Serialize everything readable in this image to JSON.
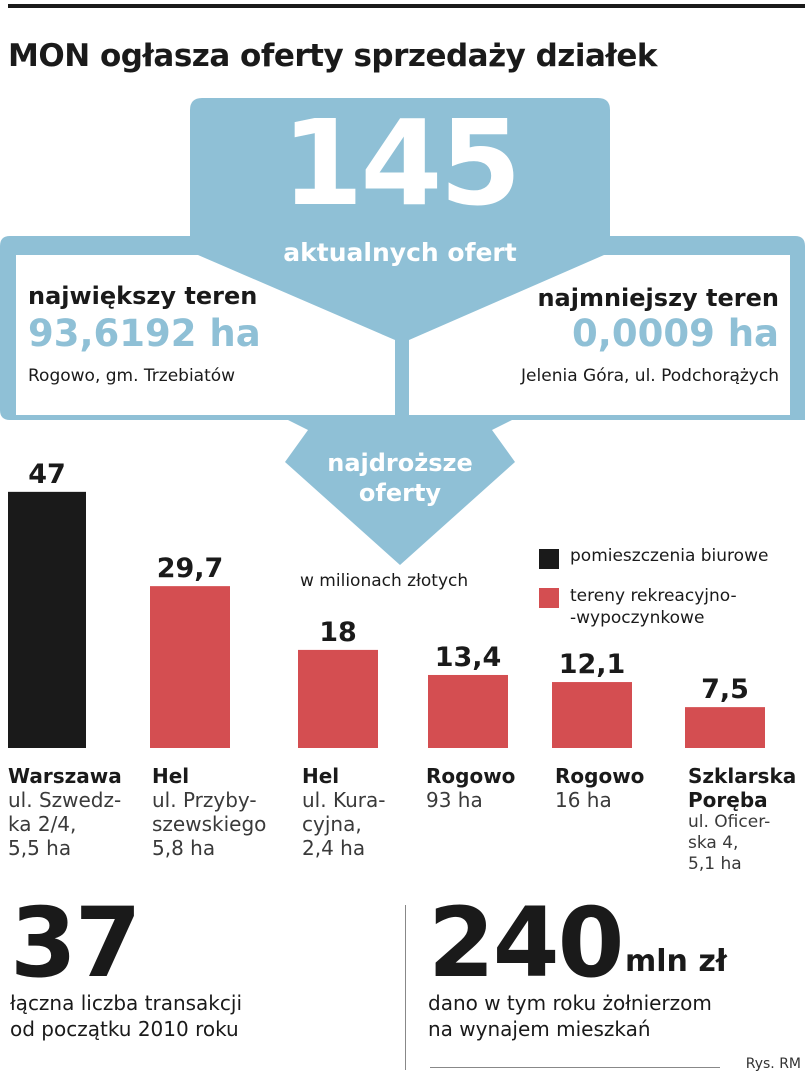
{
  "title": "MON ogłasza oferty sprzedaży działek",
  "offers": {
    "number": "145",
    "caption": "aktualnych ofert"
  },
  "largest": {
    "heading": "największy teren",
    "value": "93,6192 ha",
    "place": "Rogowo,  gm. Trzebiatów"
  },
  "smallest": {
    "heading": "najmniejszy teren",
    "value": "0,0009 ha",
    "place": "Jelenia Góra, ul. Podchorążych"
  },
  "expensive_label": [
    "najdroższe",
    "oferty"
  ],
  "colors": {
    "panel": "#8fc0d6",
    "office": "#1a1a1a",
    "recreation": "#d44e51"
  },
  "chart_data": {
    "type": "bar",
    "units_label": "w milionach złotych",
    "legend": [
      {
        "label": "pomieszczenia biurowe",
        "color": "#1a1a1a"
      },
      {
        "label": "tereny rekreacyjno- -wypoczynkowe",
        "label_lines": [
          "tereny rekreacyjno-",
          "-wypoczynkowe"
        ],
        "color": "#d44e51"
      }
    ],
    "bars": [
      {
        "value": 47,
        "value_label": "47",
        "name": "Warszawa",
        "desc": [
          "ul. Szwedz-",
          "ka 2/4,",
          "5,5 ha"
        ],
        "category": "pomieszczenia biurowe",
        "color": "#1a1a1a"
      },
      {
        "value": 29.7,
        "value_label": "29,7",
        "name": "Hel",
        "desc": [
          "ul. Przyby-",
          "szewskiego",
          "5,8 ha"
        ],
        "category": "tereny rekreacyjno-wypoczynkowe",
        "color": "#d44e51"
      },
      {
        "value": 18,
        "value_label": "18",
        "name": "Hel",
        "desc": [
          "ul. Kura-",
          "cyjna,",
          "2,4 ha"
        ],
        "category": "tereny rekreacyjno-wypoczynkowe",
        "color": "#d44e51"
      },
      {
        "value": 13.4,
        "value_label": "13,4",
        "name": "Rogowo",
        "desc": [
          "93 ha"
        ],
        "category": "tereny rekreacyjno-wypoczynkowe",
        "color": "#d44e51"
      },
      {
        "value": 12.1,
        "value_label": "12,1",
        "name": "Rogowo",
        "desc": [
          "16 ha"
        ],
        "category": "tereny rekreacyjno-wypoczynkowe",
        "color": "#d44e51"
      },
      {
        "value": 7.5,
        "value_label": "7,5",
        "name": "Szklarska Poręba",
        "desc": [
          "ul. Oficer-",
          "ska 4,",
          "5,1 ha"
        ],
        "category": "tereny rekreacyjno-wypoczynkowe",
        "color": "#d44e51"
      }
    ]
  },
  "stats": [
    {
      "number": "37",
      "unit": "",
      "desc": [
        "łączna liczba transakcji",
        "od początku 2010 roku"
      ]
    },
    {
      "number": "240",
      "unit": "mln zł",
      "desc": [
        "dano w tym roku żołnierzom",
        "na wynajem mieszkań"
      ]
    }
  ],
  "credit": "Rys. RM"
}
